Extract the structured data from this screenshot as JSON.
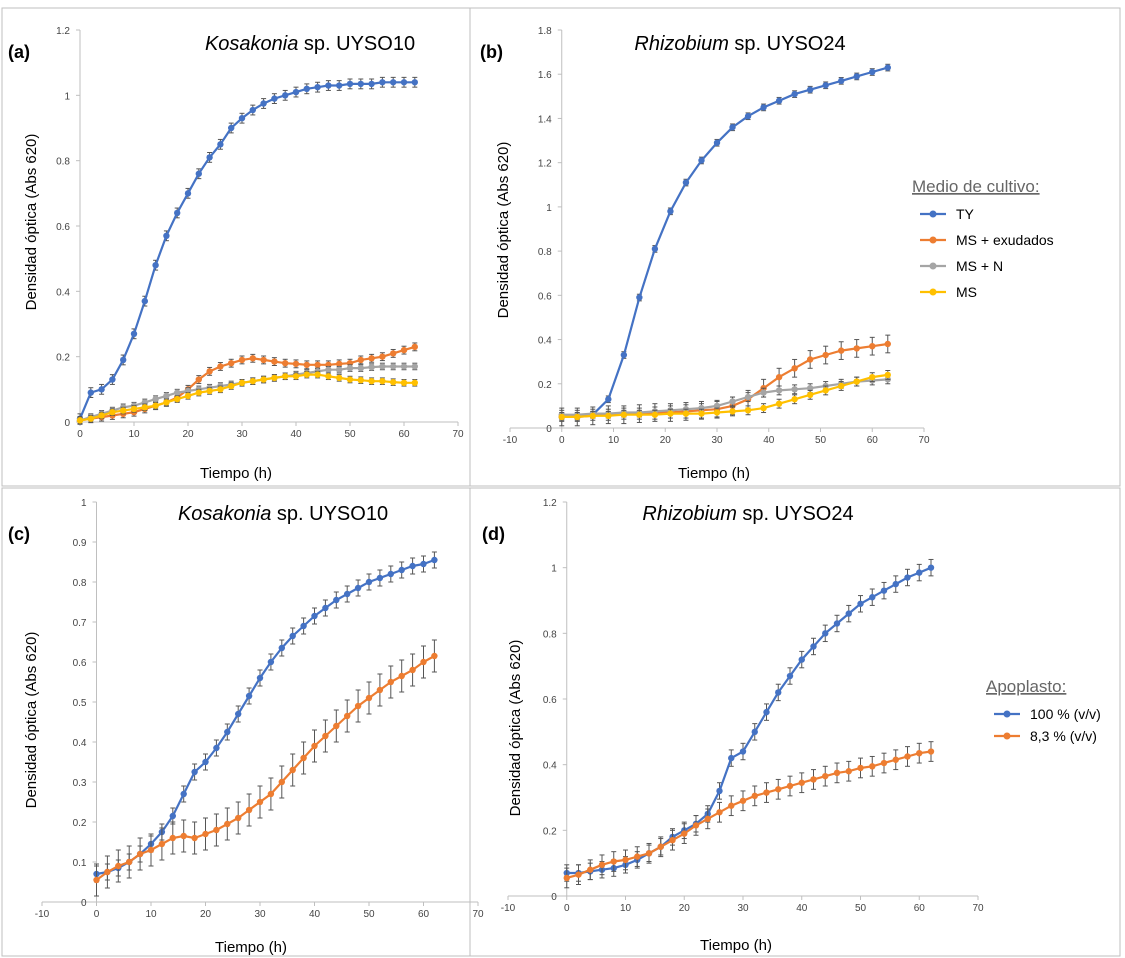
{
  "colors": {
    "blue": "#4472C4",
    "orange": "#ED7D31",
    "gray": "#A5A5A5",
    "yellow": "#FFC000",
    "errbar": "#555555",
    "panel_border": "#BFBFBF"
  },
  "chart_data": [
    {
      "panel": "(a)",
      "type": "line",
      "title_italic": "Kosakonia",
      "title_rest": " sp. UYSO10",
      "xlabel": "Tiempo (h)",
      "ylabel": "Densidad óptica (Abs 620)",
      "xlim": [
        0,
        70
      ],
      "ylim": [
        0,
        1.2
      ],
      "xticks": [
        0,
        10,
        20,
        30,
        40,
        50,
        60,
        70
      ],
      "yticks": [
        0,
        0.2,
        0.4,
        0.6,
        0.8,
        1,
        1.2
      ],
      "ytick_labels": [
        "0",
        "0.2",
        "0.4",
        "0.6",
        "0.8",
        "1",
        "1.2"
      ],
      "series": [
        {
          "name": "TY",
          "color": "blue",
          "x": [
            0,
            2,
            4,
            6,
            8,
            10,
            12,
            14,
            16,
            18,
            20,
            22,
            24,
            26,
            28,
            30,
            32,
            34,
            36,
            38,
            40,
            42,
            44,
            46,
            48,
            50,
            52,
            54,
            56,
            58,
            60,
            62
          ],
          "y": [
            0.01,
            0.09,
            0.1,
            0.13,
            0.19,
            0.27,
            0.37,
            0.48,
            0.57,
            0.64,
            0.7,
            0.76,
            0.81,
            0.85,
            0.9,
            0.93,
            0.955,
            0.975,
            0.99,
            1.0,
            1.01,
            1.02,
            1.025,
            1.03,
            1.03,
            1.035,
            1.035,
            1.035,
            1.04,
            1.04,
            1.04,
            1.04
          ],
          "err": 0.015
        },
        {
          "name": "MS + exudados",
          "color": "orange",
          "x": [
            0,
            2,
            4,
            6,
            8,
            10,
            12,
            14,
            16,
            18,
            20,
            22,
            24,
            26,
            28,
            30,
            32,
            34,
            36,
            38,
            40,
            42,
            44,
            46,
            48,
            50,
            52,
            54,
            56,
            58,
            60,
            62
          ],
          "y": [
            0.005,
            0.01,
            0.015,
            0.02,
            0.025,
            0.03,
            0.04,
            0.05,
            0.06,
            0.075,
            0.1,
            0.13,
            0.155,
            0.17,
            0.18,
            0.19,
            0.195,
            0.19,
            0.185,
            0.18,
            0.178,
            0.175,
            0.175,
            0.175,
            0.178,
            0.18,
            0.19,
            0.195,
            0.2,
            0.21,
            0.22,
            0.23
          ],
          "err": 0.012
        },
        {
          "name": "MS + N",
          "color": "gray",
          "x": [
            0,
            2,
            4,
            6,
            8,
            10,
            12,
            14,
            16,
            18,
            20,
            22,
            24,
            26,
            28,
            30,
            32,
            34,
            36,
            38,
            40,
            42,
            44,
            46,
            48,
            50,
            52,
            54,
            56,
            58,
            60,
            62
          ],
          "y": [
            0.005,
            0.015,
            0.025,
            0.035,
            0.045,
            0.05,
            0.06,
            0.07,
            0.08,
            0.09,
            0.095,
            0.1,
            0.105,
            0.11,
            0.115,
            0.12,
            0.125,
            0.13,
            0.135,
            0.14,
            0.145,
            0.15,
            0.155,
            0.16,
            0.16,
            0.165,
            0.165,
            0.168,
            0.17,
            0.17,
            0.17,
            0.17
          ],
          "err": 0.01
        },
        {
          "name": "MS",
          "color": "yellow",
          "x": [
            0,
            2,
            4,
            6,
            8,
            10,
            12,
            14,
            16,
            18,
            20,
            22,
            24,
            26,
            28,
            30,
            32,
            34,
            36,
            38,
            40,
            42,
            44,
            46,
            48,
            50,
            52,
            54,
            56,
            58,
            60,
            62
          ],
          "y": [
            0.005,
            0.01,
            0.02,
            0.03,
            0.035,
            0.04,
            0.045,
            0.05,
            0.06,
            0.07,
            0.08,
            0.09,
            0.095,
            0.1,
            0.11,
            0.12,
            0.125,
            0.13,
            0.135,
            0.14,
            0.14,
            0.145,
            0.145,
            0.14,
            0.135,
            0.13,
            0.128,
            0.125,
            0.125,
            0.122,
            0.12,
            0.12
          ],
          "err": 0.01
        }
      ]
    },
    {
      "panel": "(b)",
      "type": "line",
      "title_italic": "Rhizobium",
      "title_rest": " sp. UYSO24",
      "xlabel": "Tiempo (h)",
      "ylabel": "Densidad óptica (Abs 620)",
      "xlim": [
        -10,
        70
      ],
      "ylim": [
        0,
        1.8
      ],
      "xticks": [
        -10,
        0,
        10,
        20,
        30,
        40,
        50,
        60,
        70
      ],
      "yticks": [
        0,
        0.2,
        0.4,
        0.6,
        0.8,
        1,
        1.2,
        1.4,
        1.6,
        1.8
      ],
      "ytick_labels": [
        "0",
        "0.2",
        "0.4",
        "0.6",
        "0.8",
        "1",
        "1.2",
        "1.4",
        "1.6",
        "1.8"
      ],
      "series": [
        {
          "name": "TY",
          "color": "blue",
          "x": [
            0,
            3,
            6,
            9,
            12,
            15,
            18,
            21,
            24,
            27,
            30,
            33,
            36,
            39,
            42,
            45,
            48,
            51,
            54,
            57,
            60,
            63
          ],
          "y": [
            0.05,
            0.05,
            0.06,
            0.13,
            0.33,
            0.59,
            0.81,
            0.98,
            1.11,
            1.21,
            1.29,
            1.36,
            1.41,
            1.45,
            1.48,
            1.51,
            1.53,
            1.55,
            1.57,
            1.59,
            1.61,
            1.63
          ],
          "err": 0.015
        },
        {
          "name": "MS + exudados",
          "color": "orange",
          "x": [
            0,
            3,
            6,
            9,
            12,
            15,
            18,
            21,
            24,
            27,
            30,
            33,
            36,
            39,
            42,
            45,
            48,
            51,
            54,
            57,
            60,
            63
          ],
          "y": [
            0.05,
            0.05,
            0.055,
            0.06,
            0.06,
            0.065,
            0.07,
            0.07,
            0.075,
            0.08,
            0.085,
            0.1,
            0.13,
            0.18,
            0.23,
            0.27,
            0.31,
            0.33,
            0.35,
            0.36,
            0.37,
            0.38
          ],
          "err": 0.04
        },
        {
          "name": "MS + N",
          "color": "gray",
          "x": [
            0,
            3,
            6,
            9,
            12,
            15,
            18,
            21,
            24,
            27,
            30,
            33,
            36,
            39,
            42,
            45,
            48,
            51,
            54,
            57,
            60,
            63
          ],
          "y": [
            0.06,
            0.06,
            0.065,
            0.065,
            0.07,
            0.07,
            0.075,
            0.08,
            0.085,
            0.09,
            0.1,
            0.12,
            0.14,
            0.16,
            0.17,
            0.175,
            0.18,
            0.19,
            0.2,
            0.21,
            0.215,
            0.22
          ],
          "err": 0.02
        },
        {
          "name": "MS",
          "color": "yellow",
          "x": [
            0,
            3,
            6,
            9,
            12,
            15,
            18,
            21,
            24,
            27,
            30,
            33,
            36,
            39,
            42,
            45,
            48,
            51,
            54,
            57,
            60,
            63
          ],
          "y": [
            0.05,
            0.05,
            0.055,
            0.055,
            0.06,
            0.06,
            0.06,
            0.065,
            0.065,
            0.065,
            0.07,
            0.075,
            0.08,
            0.09,
            0.11,
            0.13,
            0.15,
            0.17,
            0.19,
            0.21,
            0.23,
            0.24
          ],
          "err": 0.02
        }
      ]
    },
    {
      "panel": "(c)",
      "type": "line",
      "title_italic": "Kosakonia",
      "title_rest": " sp. UYSO10",
      "xlabel": "Tiempo (h)",
      "ylabel": "Densidad óptica (Abs 620)",
      "xlim": [
        -10,
        70
      ],
      "ylim": [
        0,
        1
      ],
      "xticks": [
        -10,
        0,
        10,
        20,
        30,
        40,
        50,
        60,
        70
      ],
      "yticks": [
        0,
        0.1,
        0.2,
        0.3,
        0.4,
        0.5,
        0.6,
        0.7,
        0.8,
        0.9,
        1
      ],
      "ytick_labels": [
        "0",
        "0.1",
        "0.2",
        "0.3",
        "0.4",
        "0.5",
        "0.6",
        "0.7",
        "0.8",
        "0.9",
        "1"
      ],
      "series": [
        {
          "name": "100 % (v/v)",
          "color": "blue",
          "x": [
            0,
            2,
            4,
            6,
            8,
            10,
            12,
            14,
            16,
            18,
            20,
            22,
            24,
            26,
            28,
            30,
            32,
            34,
            36,
            38,
            40,
            42,
            44,
            46,
            48,
            50,
            52,
            54,
            56,
            58,
            60,
            62
          ],
          "y": [
            0.07,
            0.075,
            0.085,
            0.1,
            0.12,
            0.145,
            0.175,
            0.215,
            0.27,
            0.325,
            0.35,
            0.385,
            0.425,
            0.47,
            0.515,
            0.56,
            0.6,
            0.635,
            0.665,
            0.69,
            0.715,
            0.735,
            0.755,
            0.77,
            0.785,
            0.8,
            0.81,
            0.82,
            0.83,
            0.84,
            0.845,
            0.855
          ],
          "err": 0.02
        },
        {
          "name": "8,3 % (v/v)",
          "color": "orange",
          "x": [
            0,
            2,
            4,
            6,
            8,
            10,
            12,
            14,
            16,
            18,
            20,
            22,
            24,
            26,
            28,
            30,
            32,
            34,
            36,
            38,
            40,
            42,
            44,
            46,
            48,
            50,
            52,
            54,
            56,
            58,
            60,
            62
          ],
          "y": [
            0.055,
            0.075,
            0.09,
            0.1,
            0.12,
            0.13,
            0.145,
            0.16,
            0.165,
            0.16,
            0.17,
            0.18,
            0.195,
            0.21,
            0.23,
            0.25,
            0.27,
            0.3,
            0.33,
            0.36,
            0.39,
            0.415,
            0.44,
            0.465,
            0.49,
            0.51,
            0.53,
            0.55,
            0.565,
            0.58,
            0.6,
            0.615
          ],
          "err": 0.04
        }
      ]
    },
    {
      "panel": "(d)",
      "type": "line",
      "title_italic": "Rhizobium",
      "title_rest": " sp. UYSO24",
      "xlabel": "Tiempo (h)",
      "ylabel": "Densidad óptica (Abs 620)",
      "xlim": [
        -10,
        70
      ],
      "ylim": [
        0,
        1.2
      ],
      "xticks": [
        -10,
        0,
        10,
        20,
        30,
        40,
        50,
        60,
        70
      ],
      "yticks": [
        0,
        0.2,
        0.4,
        0.6,
        0.8,
        1,
        1.2
      ],
      "ytick_labels": [
        "0",
        "0.2",
        "0.4",
        "0.6",
        "0.8",
        "1",
        "1.2"
      ],
      "series": [
        {
          "name": "100 % (v/v)",
          "color": "blue",
          "x": [
            0,
            2,
            4,
            6,
            8,
            10,
            12,
            14,
            16,
            18,
            20,
            22,
            24,
            26,
            28,
            30,
            32,
            34,
            36,
            38,
            40,
            42,
            44,
            46,
            48,
            50,
            52,
            54,
            56,
            58,
            60,
            62
          ],
          "y": [
            0.07,
            0.07,
            0.075,
            0.08,
            0.085,
            0.095,
            0.11,
            0.13,
            0.15,
            0.18,
            0.2,
            0.22,
            0.25,
            0.32,
            0.42,
            0.44,
            0.5,
            0.56,
            0.62,
            0.67,
            0.72,
            0.76,
            0.8,
            0.83,
            0.86,
            0.89,
            0.91,
            0.93,
            0.95,
            0.97,
            0.985,
            1.0
          ],
          "err": 0.025
        },
        {
          "name": "8,3 % (v/v)",
          "color": "orange",
          "x": [
            0,
            2,
            4,
            6,
            8,
            10,
            12,
            14,
            16,
            18,
            20,
            22,
            24,
            26,
            28,
            30,
            32,
            34,
            36,
            38,
            40,
            42,
            44,
            46,
            48,
            50,
            52,
            54,
            56,
            58,
            60,
            62
          ],
          "y": [
            0.055,
            0.065,
            0.08,
            0.095,
            0.105,
            0.11,
            0.12,
            0.13,
            0.15,
            0.17,
            0.19,
            0.215,
            0.235,
            0.255,
            0.275,
            0.29,
            0.305,
            0.315,
            0.325,
            0.335,
            0.345,
            0.355,
            0.365,
            0.375,
            0.38,
            0.39,
            0.395,
            0.405,
            0.415,
            0.425,
            0.435,
            0.44
          ],
          "err": 0.03
        }
      ]
    }
  ],
  "legends": [
    {
      "title": "Medio de cultivo:",
      "items": [
        "TY",
        "MS + exudados",
        "MS + N",
        "MS"
      ],
      "colors": [
        "blue",
        "orange",
        "gray",
        "yellow"
      ]
    },
    {
      "title": "Apoplasto:",
      "items": [
        "100 % (v/v)",
        "8,3 % (v/v)"
      ],
      "colors": [
        "blue",
        "orange"
      ]
    }
  ]
}
